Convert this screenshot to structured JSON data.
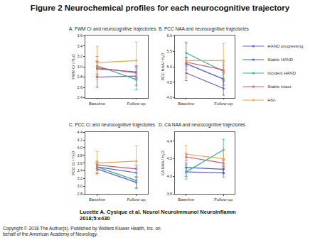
{
  "header": {
    "title": "Figure 2 Neurochemical profiles for each neurocognitive trajectory"
  },
  "chart_data": [
    {
      "type": "line",
      "title": "A. FWM Cr and neurocognitive trajectories",
      "y_label": "FWM Cr / H₂O",
      "categories": [
        "Baseline",
        "Follow-up"
      ],
      "ylim": [
        2.4,
        3.6
      ],
      "yticks": [
        2.4,
        2.6,
        2.8,
        {
          "value": 3,
          "label": "3.0"
        },
        3.2,
        3.4,
        3.6
      ],
      "legend": "right",
      "marker": "circle",
      "series": [
        {
          "name": "HAND progressing",
          "color": "#6b5bd2",
          "values": [
            2.8,
            2.82
          ],
          "error": [
            0.2,
            0.18
          ]
        },
        {
          "name": "Stable HAND",
          "color": "#3f62d8",
          "values": [
            2.96,
            2.9
          ],
          "error": [
            0.15,
            0.12
          ]
        },
        {
          "name": "Incident HAND",
          "color": "#2bb3a0",
          "values": [
            3.02,
            2.75
          ],
          "error": [
            0.18,
            0.2
          ]
        },
        {
          "name": "Stable intact",
          "color": "#e0506a",
          "values": [
            2.98,
            2.88
          ],
          "error": [
            0.12,
            0.1
          ]
        },
        {
          "name": "HIV-",
          "color": "#f0a442",
          "values": [
            3.08,
            3.12
          ],
          "error": [
            0.32,
            0.36
          ]
        }
      ]
    },
    {
      "type": "line",
      "title": "B. PCC NAA and neurocognitive trajectories",
      "y_label": "PCC NAA / H₂O",
      "categories": [
        "Baseline",
        "Follow-up"
      ],
      "ylim": [
        4,
        6
      ],
      "yticks": [
        {
          "value": 4,
          "label": "4.0"
        },
        4.5,
        {
          "value": 5,
          "label": "5.0"
        },
        5.5,
        {
          "value": 6,
          "label": "6.0"
        }
      ],
      "marker": "circle",
      "series": [
        {
          "name": "HAND progressing",
          "color": "#6b5bd2",
          "values": [
            4.8,
            4.3
          ],
          "error": [
            0.25,
            0.22
          ]
        },
        {
          "name": "Stable HAND",
          "color": "#3f62d8",
          "values": [
            5.1,
            4.6
          ],
          "error": [
            0.2,
            0.2
          ]
        },
        {
          "name": "Incident HAND",
          "color": "#2bb3a0",
          "values": [
            5.45,
            4.85
          ],
          "error": [
            0.35,
            0.3
          ]
        },
        {
          "name": "Stable intact",
          "color": "#e0506a",
          "values": [
            5.15,
            4.9
          ],
          "error": [
            0.15,
            0.15
          ]
        },
        {
          "name": "HIV-",
          "color": "#f0a442",
          "values": [
            5.2,
            5.2
          ],
          "error": [
            0.55,
            0.55
          ]
        }
      ]
    },
    {
      "type": "line",
      "title": "C. PCC Cr and neurocognitive trajectories",
      "y_label": "PCC Cr / H₂O",
      "categories": [
        "Baseline",
        "Follow-up"
      ],
      "ylim": [
        2.8,
        4.4
      ],
      "yticks": [
        2.8,
        {
          "value": 3,
          "label": "3.0"
        },
        3.2,
        3.4,
        3.6,
        3.8,
        {
          "value": 4,
          "label": "4.0"
        },
        4.2,
        4.4
      ],
      "marker": "circle",
      "series": [
        {
          "name": "HAND progressing",
          "color": "#6b5bd2",
          "values": [
            3.45,
            3.1
          ],
          "error": [
            0.12,
            0.15
          ]
        },
        {
          "name": "Stable HAND",
          "color": "#3f62d8",
          "values": [
            3.5,
            3.35
          ],
          "error": [
            0.1,
            0.12
          ]
        },
        {
          "name": "Incident HAND",
          "color": "#2bb3a0",
          "values": [
            3.5,
            3.15
          ],
          "error": [
            0.15,
            0.2
          ]
        },
        {
          "name": "Stable intact",
          "color": "#e0506a",
          "values": [
            3.55,
            3.45
          ],
          "error": [
            0.08,
            0.1
          ]
        },
        {
          "name": "HIV-",
          "color": "#f0a442",
          "values": [
            3.6,
            3.65
          ],
          "error": [
            0.3,
            0.4
          ]
        }
      ]
    },
    {
      "type": "line",
      "title": "D. CA NAA and neurocognitive trajectories",
      "y_label": "CA NAA / H₂O",
      "categories": [
        "Baseline",
        "Follow-up"
      ],
      "ylim": [
        3.8,
        4.5
      ],
      "yticks": [
        3.8,
        {
          "value": 4,
          "label": "4.0"
        },
        4.2,
        4.4
      ],
      "marker": "circle",
      "series": [
        {
          "name": "HAND progressing",
          "color": "#6b5bd2",
          "values": [
            4.05,
            4.04
          ],
          "error": [
            0.05,
            0.05
          ]
        },
        {
          "name": "Stable HAND",
          "color": "#3f62d8",
          "values": [
            4.1,
            4.08
          ],
          "error": [
            0.05,
            0.05
          ]
        },
        {
          "name": "Incident HAND",
          "color": "#2bb3a0",
          "values": [
            4.05,
            4.3
          ],
          "error": [
            0.08,
            0.12
          ]
        },
        {
          "name": "Stable intact",
          "color": "#e0506a",
          "values": [
            4.22,
            4.15
          ],
          "error": [
            0.04,
            0.04
          ]
        },
        {
          "name": "HIV-",
          "color": "#f0a442",
          "values": [
            4.25,
            4.2
          ],
          "error": [
            0.1,
            0.1
          ]
        }
      ]
    }
  ],
  "footer": {
    "citation": "Lucette A. Cysique et al. Neurol Neuroimmunol Neuroinflamm 2018;5:e430",
    "copyright": "Copyright © 2018 The Author(s). Published by Wolters Kluwer Health, Inc. on behalf of the American Academy of Neurology."
  }
}
